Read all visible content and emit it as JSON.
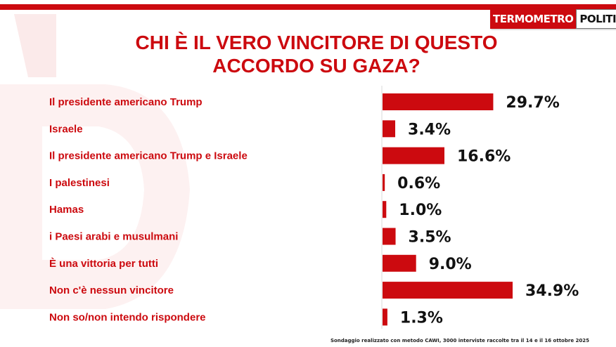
{
  "logo": {
    "part1": "TERMOMETRO",
    "part2": "POLITICO"
  },
  "title": {
    "line1": "CHI È IL VERO VINCITORE DI QUESTO",
    "line2": "ACCORDO SU GAZA?"
  },
  "colors": {
    "accent": "#cc0a0f",
    "bar": "#cc0a0f",
    "value_text": "#111111"
  },
  "chart_data": {
    "type": "bar",
    "orientation": "horizontal",
    "categories": [
      "Il presidente americano Trump",
      "Israele",
      "Il presidente americano Trump e Israele",
      "I palestinesi",
      "Hamas",
      "i Paesi arabi e musulmani",
      "È una vittoria per tutti",
      "Non c'è nessun vincitore",
      "Non so/non intendo rispondere"
    ],
    "values": [
      29.7,
      3.4,
      16.6,
      0.6,
      1.0,
      3.5,
      9.0,
      34.9,
      1.3
    ],
    "value_labels": [
      "29.7%",
      "3.4%",
      "16.6%",
      "0.6%",
      "1.0%",
      "3.5%",
      "9.0%",
      "34.9%",
      "1.3%"
    ],
    "unit": "%",
    "title": "CHI È IL VERO VINCITORE DI QUESTO ACCORDO SU GAZA?",
    "xlim": [
      0,
      40
    ],
    "grid": false,
    "legend": "none"
  },
  "footnote": "Sondaggio realizzato con metodo CAWI, 3000 interviste raccolte tra il 14 e il 16 ottobre  2025"
}
